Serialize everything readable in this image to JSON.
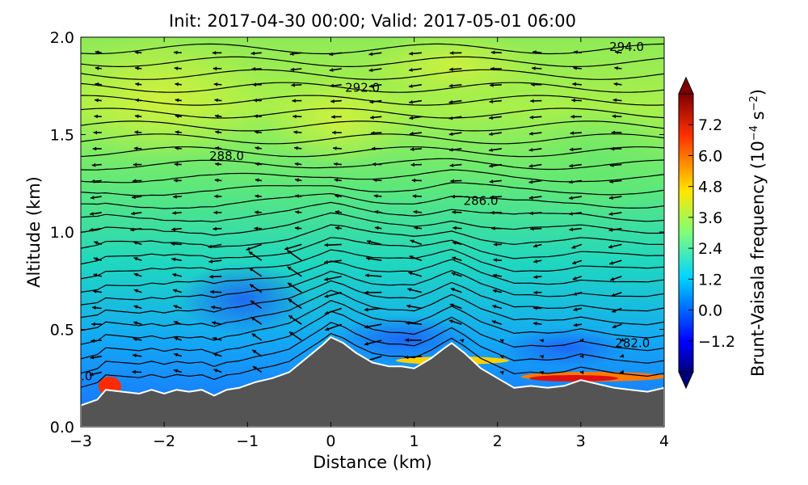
{
  "chart_data": {
    "type": "heatmap",
    "title": "Init: 2017-04-30 00:00; Valid: 2017-05-01 06:00",
    "xlabel": "Distance (km)",
    "ylabel": "Altitude (km)",
    "xlim": [
      -3,
      4
    ],
    "ylim": [
      0.0,
      2.0
    ],
    "x_ticks": [
      -3,
      -2,
      -1,
      0,
      1,
      2,
      3,
      4
    ],
    "x_tick_labels": [
      "−3",
      "−2",
      "−1",
      "0",
      "1",
      "2",
      "3",
      "4"
    ],
    "y_ticks": [
      0.0,
      0.5,
      1.0,
      1.5,
      2.0
    ],
    "y_tick_labels": [
      "0.0",
      "0.5",
      "1.0",
      "1.5",
      "2.0"
    ],
    "grid": false,
    "colorbar": {
      "label_main": "Brunt-Vaisala frequency (10",
      "label_exp1": "−4",
      "label_mid": " s",
      "label_exp2": "−2",
      "label_end": ")",
      "range": [
        -2.4,
        8.4
      ],
      "ticks": [
        -1.2,
        0.0,
        1.2,
        2.4,
        3.6,
        4.8,
        6.0,
        7.2
      ],
      "tick_labels": [
        "−1.2",
        "0.0",
        "1.2",
        "2.4",
        "3.6",
        "4.8",
        "6.0",
        "7.2"
      ],
      "extend": "both",
      "colormap": "jet"
    },
    "terrain": {
      "x": [
        -3.0,
        -2.8,
        -2.7,
        -2.5,
        -2.3,
        -2.15,
        -2.0,
        -1.85,
        -1.7,
        -1.55,
        -1.4,
        -1.25,
        -1.1,
        -0.9,
        -0.7,
        -0.5,
        -0.3,
        -0.1,
        0.0,
        0.15,
        0.3,
        0.5,
        0.7,
        0.85,
        1.0,
        1.2,
        1.35,
        1.45,
        1.6,
        1.8,
        2.0,
        2.2,
        2.4,
        2.6,
        2.8,
        3.0,
        3.2,
        3.4,
        3.6,
        3.8,
        4.0
      ],
      "z": [
        0.11,
        0.14,
        0.19,
        0.18,
        0.17,
        0.19,
        0.17,
        0.19,
        0.18,
        0.19,
        0.16,
        0.19,
        0.2,
        0.23,
        0.25,
        0.28,
        0.35,
        0.42,
        0.46,
        0.43,
        0.38,
        0.33,
        0.31,
        0.31,
        0.3,
        0.35,
        0.4,
        0.43,
        0.38,
        0.3,
        0.25,
        0.2,
        0.21,
        0.2,
        0.21,
        0.24,
        0.22,
        0.2,
        0.19,
        0.18,
        0.2
      ]
    },
    "contour_label_values": [
      294.0,
      292.0,
      288.0,
      286.0,
      282.0
    ],
    "contour_labels": [
      {
        "text": "294.0",
        "x": 3.55,
        "y": 1.95
      },
      {
        "text": "292.0",
        "x": 0.38,
        "y": 1.74
      },
      {
        "text": "288.0",
        "x": -1.25,
        "y": 1.39
      },
      {
        "text": "286.0",
        "x": 1.8,
        "y": 1.16
      },
      {
        "text": "282.0",
        "x": 3.62,
        "y": 0.43
      },
      {
        "text": ".0",
        "x": -2.93,
        "y": 0.26
      }
    ]
  }
}
